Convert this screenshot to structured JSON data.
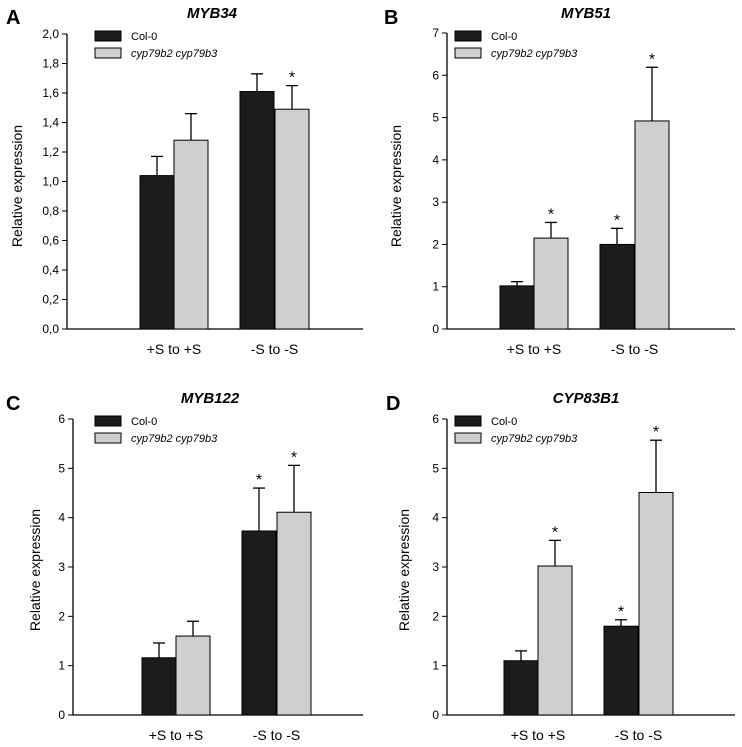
{
  "figure": {
    "series_names": [
      "Col-0",
      "cyp79b2 cyp79b3"
    ],
    "colors": {
      "col0": "#1c1c1c",
      "mutant": "#cfcfcf"
    }
  },
  "chart_data": [
    {
      "type": "bar",
      "panel": "A",
      "title": "MYB34",
      "ylabel": "Relative expression",
      "xlabel": "",
      "categories": [
        "+S to +S",
        "-S to -S"
      ],
      "ylim": [
        0,
        2.0
      ],
      "yticks": [
        0,
        0.2,
        0.4,
        0.6,
        0.8,
        1.0,
        1.2,
        1.4,
        1.6,
        1.8,
        2.0
      ],
      "ytick_labels": [
        "0,0",
        "0,2",
        "0,4",
        "0,6",
        "0,8",
        "1,0",
        "1,2",
        "1,4",
        "1,6",
        "1,8",
        "2,0"
      ],
      "series": [
        {
          "name": "Col-0",
          "values": [
            1.04,
            1.61
          ],
          "errors": [
            0.13,
            0.12
          ],
          "significant": [
            false,
            false
          ]
        },
        {
          "name": "cyp79b2 cyp79b3",
          "values": [
            1.28,
            1.49
          ],
          "errors": [
            0.18,
            0.16
          ],
          "significant": [
            false,
            true
          ]
        }
      ],
      "marker": "*"
    },
    {
      "type": "bar",
      "panel": "B",
      "title": "MYB51",
      "ylabel": "Relative expression",
      "xlabel": "",
      "categories": [
        "+S to +S",
        "-S to -S"
      ],
      "ylim": [
        0,
        7
      ],
      "yticks": [
        0,
        1,
        2,
        3,
        4,
        5,
        6,
        7
      ],
      "ytick_labels": [
        "0",
        "1",
        "2",
        "3",
        "4",
        "5",
        "6",
        "7"
      ],
      "series": [
        {
          "name": "Col-0",
          "values": [
            1.02,
            2.0
          ],
          "errors": [
            0.1,
            0.38
          ],
          "significant": [
            false,
            true
          ]
        },
        {
          "name": "cyp79b2 cyp79b3",
          "values": [
            2.15,
            4.92
          ],
          "errors": [
            0.37,
            1.27
          ],
          "significant": [
            true,
            true
          ]
        }
      ],
      "marker": "*"
    },
    {
      "type": "bar",
      "panel": "C",
      "title": "MYB122",
      "ylabel": "Relative expression",
      "xlabel": "",
      "categories": [
        "+S to +S",
        "-S to -S"
      ],
      "ylim": [
        0,
        6
      ],
      "yticks": [
        0,
        1,
        2,
        3,
        4,
        5,
        6
      ],
      "ytick_labels": [
        "0",
        "1",
        "2",
        "3",
        "4",
        "5",
        "6"
      ],
      "series": [
        {
          "name": "Col-0",
          "values": [
            1.16,
            3.73
          ],
          "errors": [
            0.3,
            0.87
          ],
          "significant": [
            false,
            true
          ]
        },
        {
          "name": "cyp79b2 cyp79b3",
          "values": [
            1.6,
            4.11
          ],
          "errors": [
            0.3,
            0.95
          ],
          "significant": [
            false,
            true
          ]
        }
      ],
      "marker": "*"
    },
    {
      "type": "bar",
      "panel": "D",
      "title": "CYP83B1",
      "ylabel": "Relative expression",
      "xlabel": "",
      "categories": [
        "+S to +S",
        "-S to -S"
      ],
      "ylim": [
        0,
        6
      ],
      "yticks": [
        0,
        1,
        2,
        3,
        4,
        5,
        6
      ],
      "ytick_labels": [
        "0",
        "1",
        "2",
        "3",
        "4",
        "5",
        "6"
      ],
      "series": [
        {
          "name": "Col-0",
          "values": [
            1.1,
            1.8
          ],
          "errors": [
            0.2,
            0.13
          ],
          "significant": [
            false,
            true
          ]
        },
        {
          "name": "cyp79b2 cyp79b3",
          "values": [
            3.02,
            4.51
          ],
          "errors": [
            0.52,
            1.06
          ],
          "significant": [
            true,
            true
          ]
        }
      ],
      "marker": "*"
    }
  ]
}
